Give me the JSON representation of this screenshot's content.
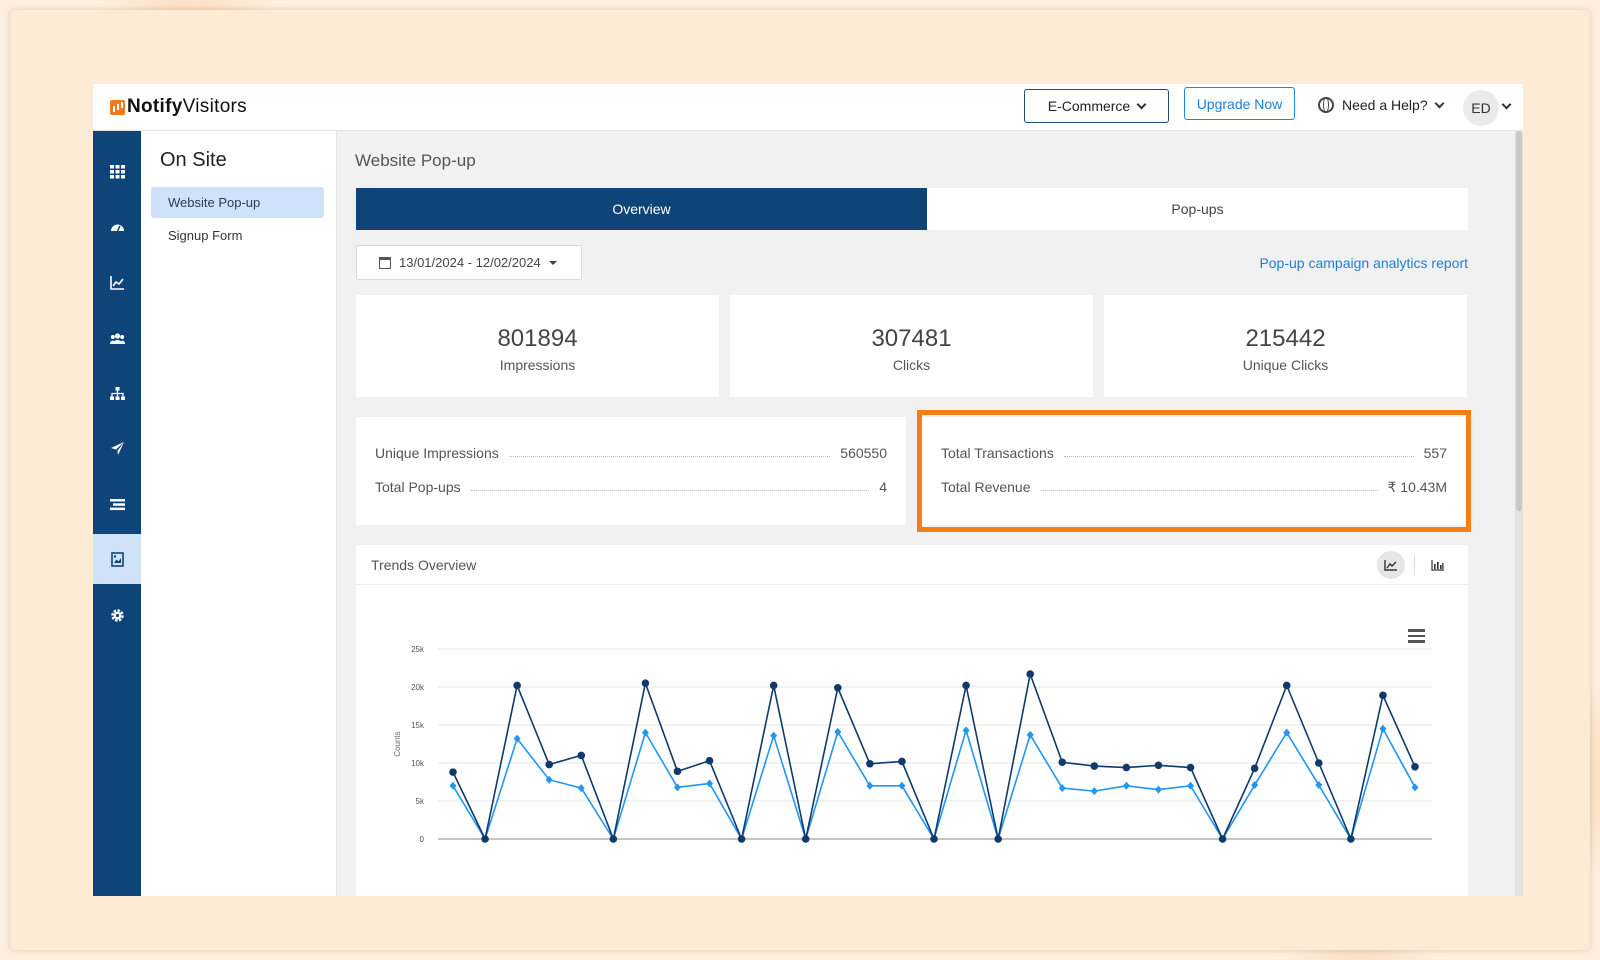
{
  "app": {
    "brand_bold": "Notify",
    "brand_light": "Visitors",
    "product_select": "E-Commerce",
    "upgrade_label": "Upgrade Now",
    "help_label": "Need a Help?",
    "avatar_initials": "ED"
  },
  "iconbar": {
    "items": [
      "apps-grid-icon",
      "dashboard-icon",
      "analytics-icon",
      "audience-icon",
      "hierarchy-icon",
      "send-icon",
      "list-icon",
      "popup-icon",
      "settings-icon"
    ],
    "active": "popup-icon"
  },
  "subnav": {
    "title": "On Site",
    "items": [
      {
        "label": "Website Pop-up",
        "active": true
      },
      {
        "label": "Signup Form",
        "active": false
      }
    ]
  },
  "main": {
    "title": "Website Pop-up",
    "tabs": [
      {
        "label": "Overview",
        "active": true
      },
      {
        "label": "Pop-ups",
        "active": false
      }
    ],
    "date_range": "13/01/2024 - 12/02/2024",
    "report_link": "Pop-up campaign analytics report",
    "stats": [
      {
        "value": "801894",
        "label": "Impressions"
      },
      {
        "value": "307481",
        "label": "Clicks"
      },
      {
        "value": "215442",
        "label": "Unique Clicks"
      }
    ],
    "summary_left": [
      {
        "label": "Unique Impressions",
        "value": "560550"
      },
      {
        "label": "Total Pop-ups",
        "value": "4"
      }
    ],
    "summary_right": [
      {
        "label": "Total Transactions",
        "value": "557"
      },
      {
        "label": "Total Revenue",
        "value": "₹ 10.43M"
      }
    ],
    "highlight_color": "#f47f16",
    "trends_title": "Trends Overview"
  },
  "chart_data": {
    "type": "line",
    "ylabel": "Counts",
    "ylim": [
      0,
      25000
    ],
    "yticks": [
      "0",
      "5k",
      "10k",
      "15k",
      "20k",
      "25k"
    ],
    "series": [
      {
        "color": "#0f3a6b",
        "marker": "circle",
        "values": [
          8800,
          0,
          20200,
          9800,
          11000,
          0,
          20500,
          8900,
          10300,
          0,
          20200,
          0,
          19900,
          9900,
          10200,
          0,
          20200,
          0,
          21700,
          10100,
          9600,
          9400,
          9700,
          9400,
          0,
          9300,
          20200,
          10000,
          0,
          18900,
          9500
        ]
      },
      {
        "color": "#2196f3",
        "marker": "diamond",
        "values": [
          7000,
          0,
          13200,
          7800,
          6700,
          0,
          14000,
          6800,
          7300,
          0,
          13600,
          0,
          14100,
          7000,
          7000,
          0,
          14300,
          0,
          13700,
          6700,
          6300,
          7000,
          6500,
          7000,
          0,
          7100,
          14000,
          7100,
          0,
          14500,
          6800
        ]
      }
    ]
  }
}
